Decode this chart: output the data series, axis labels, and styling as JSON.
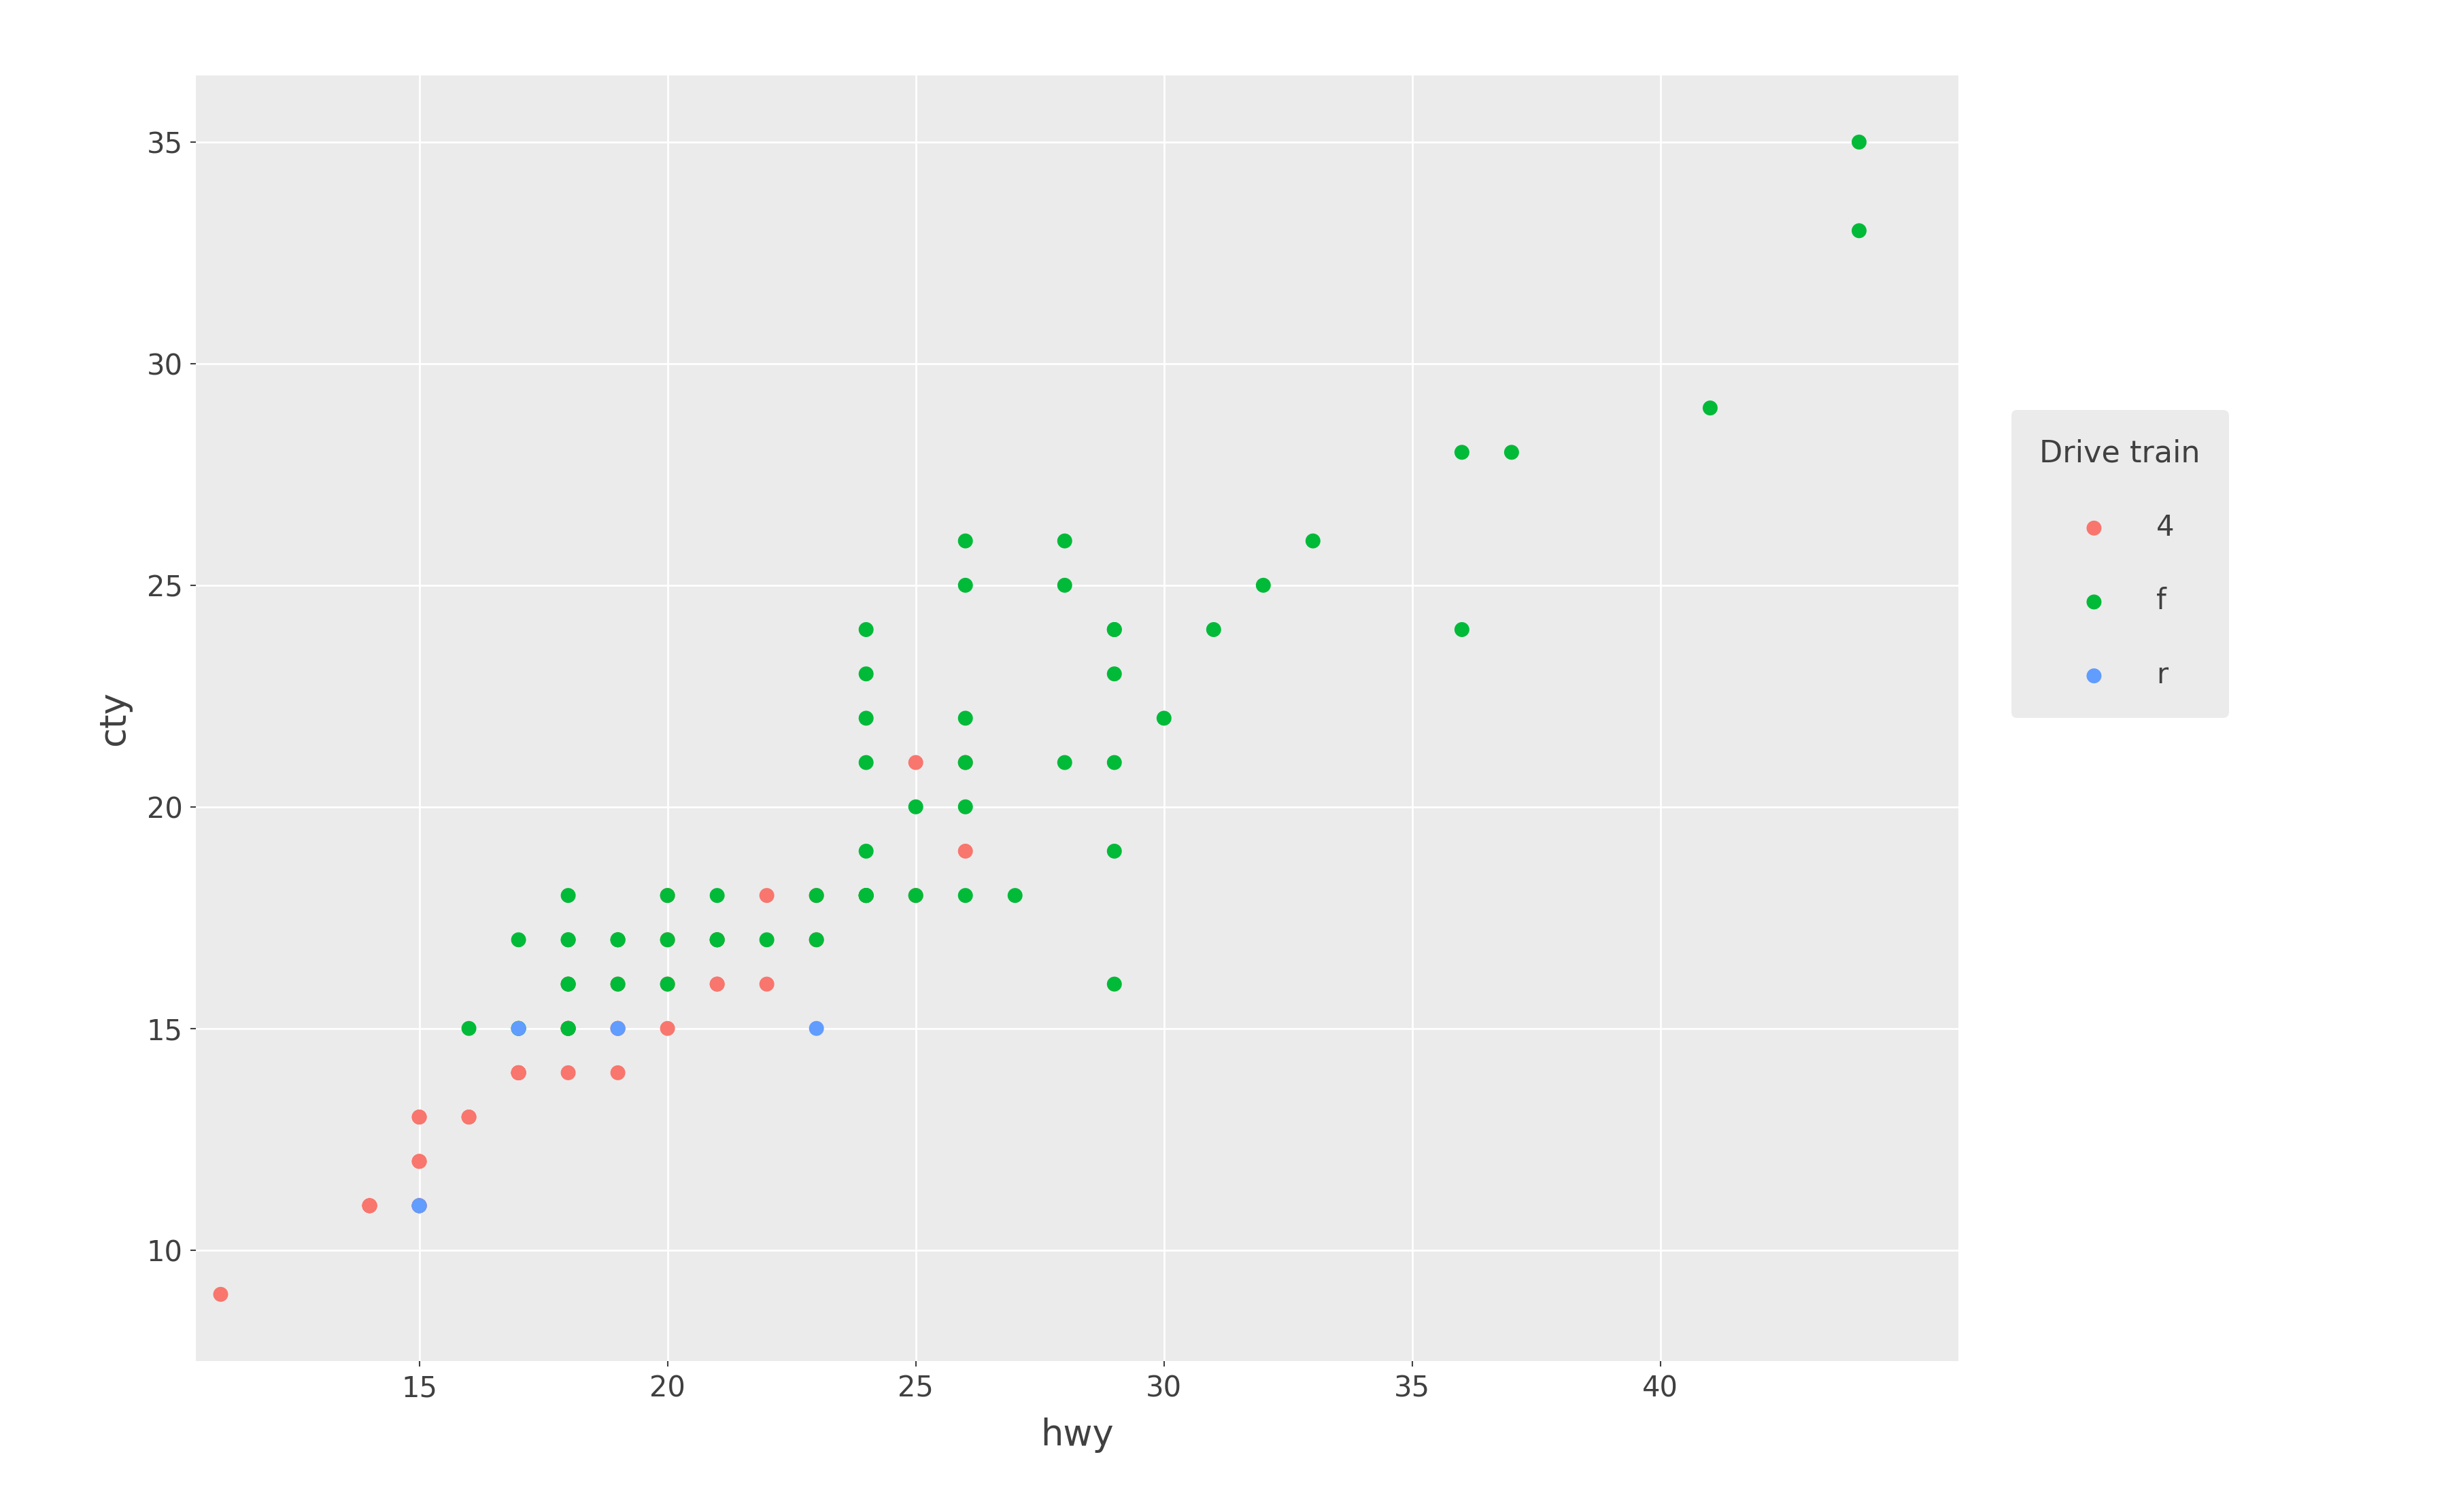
{
  "title": "",
  "xlabel": "hwy",
  "ylabel": "cty",
  "legend_title": "Drive train",
  "background_color": "#EBEBEB",
  "grid_color": "#FFFFFF",
  "text_color": "#404040",
  "point_size": 250,
  "point_alpha": 1.0,
  "categories": {
    "4": {
      "color": "#F8766D",
      "points": [
        [
          11,
          9
        ],
        [
          14,
          11
        ],
        [
          14,
          11
        ],
        [
          14,
          11
        ],
        [
          14,
          11
        ],
        [
          15,
          11
        ],
        [
          15,
          11
        ],
        [
          15,
          11
        ],
        [
          15,
          11
        ],
        [
          15,
          12
        ],
        [
          15,
          12
        ],
        [
          15,
          13
        ],
        [
          15,
          13
        ],
        [
          16,
          13
        ],
        [
          16,
          13
        ],
        [
          17,
          14
        ],
        [
          17,
          14
        ],
        [
          17,
          14
        ],
        [
          17,
          14
        ],
        [
          17,
          14
        ],
        [
          18,
          14
        ],
        [
          18,
          15
        ],
        [
          18,
          15
        ],
        [
          18,
          15
        ],
        [
          18,
          16
        ],
        [
          19,
          14
        ],
        [
          19,
          15
        ],
        [
          19,
          15
        ],
        [
          19,
          16
        ],
        [
          19,
          17
        ],
        [
          20,
          15
        ],
        [
          20,
          16
        ],
        [
          20,
          17
        ],
        [
          20,
          18
        ],
        [
          21,
          16
        ],
        [
          21,
          16
        ],
        [
          21,
          17
        ],
        [
          21,
          17
        ],
        [
          22,
          16
        ],
        [
          22,
          18
        ],
        [
          23,
          17
        ],
        [
          23,
          18
        ],
        [
          24,
          18
        ],
        [
          25,
          18
        ],
        [
          25,
          21
        ],
        [
          26,
          19
        ],
        [
          26,
          21
        ]
      ]
    },
    "f": {
      "color": "#00BA38",
      "points": [
        [
          16,
          15
        ],
        [
          17,
          15
        ],
        [
          17,
          15
        ],
        [
          17,
          17
        ],
        [
          18,
          15
        ],
        [
          18,
          15
        ],
        [
          18,
          16
        ],
        [
          18,
          16
        ],
        [
          18,
          17
        ],
        [
          18,
          17
        ],
        [
          18,
          18
        ],
        [
          19,
          16
        ],
        [
          19,
          17
        ],
        [
          19,
          17
        ],
        [
          20,
          16
        ],
        [
          20,
          17
        ],
        [
          20,
          18
        ],
        [
          21,
          17
        ],
        [
          21,
          17
        ],
        [
          21,
          18
        ],
        [
          22,
          17
        ],
        [
          23,
          17
        ],
        [
          23,
          18
        ],
        [
          24,
          18
        ],
        [
          24,
          18
        ],
        [
          24,
          18
        ],
        [
          24,
          18
        ],
        [
          24,
          19
        ],
        [
          24,
          21
        ],
        [
          24,
          22
        ],
        [
          24,
          23
        ],
        [
          24,
          24
        ],
        [
          25,
          18
        ],
        [
          25,
          20
        ],
        [
          26,
          18
        ],
        [
          26,
          20
        ],
        [
          26,
          21
        ],
        [
          26,
          22
        ],
        [
          26,
          25
        ],
        [
          26,
          26
        ],
        [
          27,
          18
        ],
        [
          28,
          21
        ],
        [
          28,
          25
        ],
        [
          28,
          26
        ],
        [
          29,
          16
        ],
        [
          29,
          19
        ],
        [
          29,
          21
        ],
        [
          29,
          23
        ],
        [
          29,
          24
        ],
        [
          29,
          24
        ],
        [
          30,
          22
        ],
        [
          31,
          24
        ],
        [
          32,
          25
        ],
        [
          33,
          26
        ],
        [
          36,
          24
        ],
        [
          36,
          28
        ],
        [
          37,
          28
        ],
        [
          41,
          29
        ],
        [
          44,
          33
        ],
        [
          44,
          35
        ]
      ]
    },
    "r": {
      "color": "#619CFF",
      "points": [
        [
          15,
          11
        ],
        [
          15,
          11
        ],
        [
          17,
          15
        ],
        [
          19,
          15
        ],
        [
          23,
          15
        ]
      ]
    }
  },
  "xlim": [
    10.5,
    46
  ],
  "ylim": [
    7.5,
    36.5
  ],
  "xticks": [
    15,
    20,
    25,
    30,
    35,
    40
  ],
  "yticks": [
    10,
    15,
    20,
    25,
    30,
    35
  ],
  "tick_label_fontsize": 30,
  "axis_label_fontsize": 38,
  "legend_title_fontsize": 32,
  "legend_text_fontsize": 30
}
